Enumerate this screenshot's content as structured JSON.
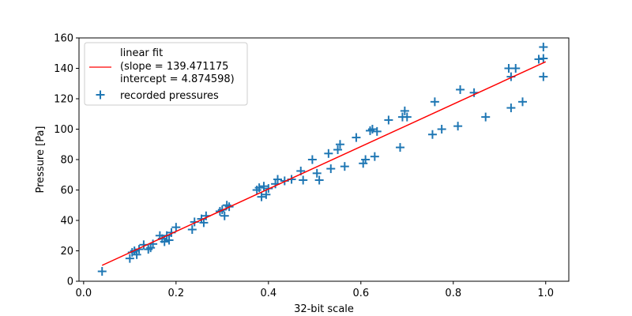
{
  "chart_data": {
    "type": "scatter",
    "xlabel": "32-bit scale",
    "ylabel": "Pressure [Pa]",
    "xlim": [
      -0.01,
      1.05
    ],
    "ylim": [
      0,
      160
    ],
    "xticks": [
      0.0,
      0.2,
      0.4,
      0.6,
      0.8,
      1.0
    ],
    "xtick_labels": [
      "0.0",
      "0.2",
      "0.4",
      "0.6",
      "0.8",
      "1.0"
    ],
    "yticks": [
      0,
      20,
      40,
      60,
      80,
      100,
      120,
      140,
      160
    ],
    "ytick_labels": [
      "0",
      "20",
      "40",
      "60",
      "80",
      "100",
      "120",
      "140",
      "160"
    ],
    "grid": false,
    "legend_position": "upper-left",
    "fit": {
      "name_lines": [
        "linear fit",
        "(slope = 139.471175",
        "intercept = 4.874598)"
      ],
      "slope": 139.471175,
      "intercept": 4.874598,
      "x_range": [
        0.04,
        1.0
      ],
      "color": "#ff0000"
    },
    "series": [
      {
        "name": "recorded pressures",
        "marker": "plus",
        "color": "#1f77b4",
        "points": [
          [
            0.04,
            6.5
          ],
          [
            0.1,
            15
          ],
          [
            0.105,
            19
          ],
          [
            0.11,
            20
          ],
          [
            0.115,
            17.5
          ],
          [
            0.12,
            21
          ],
          [
            0.13,
            24
          ],
          [
            0.14,
            21
          ],
          [
            0.145,
            22
          ],
          [
            0.15,
            24.5
          ],
          [
            0.165,
            30
          ],
          [
            0.17,
            28
          ],
          [
            0.175,
            26
          ],
          [
            0.18,
            30
          ],
          [
            0.185,
            27
          ],
          [
            0.19,
            32
          ],
          [
            0.2,
            35.5
          ],
          [
            0.235,
            34
          ],
          [
            0.24,
            39
          ],
          [
            0.255,
            41
          ],
          [
            0.26,
            38.5
          ],
          [
            0.265,
            43
          ],
          [
            0.295,
            46
          ],
          [
            0.3,
            47
          ],
          [
            0.305,
            43
          ],
          [
            0.31,
            50
          ],
          [
            0.315,
            49
          ],
          [
            0.375,
            60
          ],
          [
            0.38,
            61.5
          ],
          [
            0.385,
            55.5
          ],
          [
            0.39,
            62.5
          ],
          [
            0.395,
            57
          ],
          [
            0.4,
            61
          ],
          [
            0.415,
            64
          ],
          [
            0.42,
            67
          ],
          [
            0.435,
            66
          ],
          [
            0.45,
            67
          ],
          [
            0.47,
            72.5
          ],
          [
            0.475,
            66.5
          ],
          [
            0.495,
            80
          ],
          [
            0.505,
            71
          ],
          [
            0.51,
            66.5
          ],
          [
            0.53,
            84
          ],
          [
            0.535,
            74
          ],
          [
            0.55,
            86.5
          ],
          [
            0.555,
            90
          ],
          [
            0.565,
            75.5
          ],
          [
            0.59,
            94.5
          ],
          [
            0.605,
            77.5
          ],
          [
            0.61,
            80
          ],
          [
            0.62,
            99
          ],
          [
            0.625,
            100
          ],
          [
            0.63,
            82
          ],
          [
            0.635,
            98.5
          ],
          [
            0.66,
            106
          ],
          [
            0.685,
            88
          ],
          [
            0.69,
            108
          ],
          [
            0.695,
            112
          ],
          [
            0.7,
            108
          ],
          [
            0.755,
            96.5
          ],
          [
            0.76,
            118
          ],
          [
            0.775,
            100
          ],
          [
            0.81,
            102
          ],
          [
            0.815,
            126
          ],
          [
            0.845,
            124
          ],
          [
            0.87,
            108
          ],
          [
            0.92,
            140
          ],
          [
            0.925,
            114
          ],
          [
            0.925,
            134.5
          ],
          [
            0.935,
            140
          ],
          [
            0.95,
            118
          ],
          [
            0.985,
            146
          ],
          [
            0.995,
            154
          ],
          [
            0.995,
            146.5
          ],
          [
            0.995,
            134.5
          ]
        ]
      }
    ]
  }
}
